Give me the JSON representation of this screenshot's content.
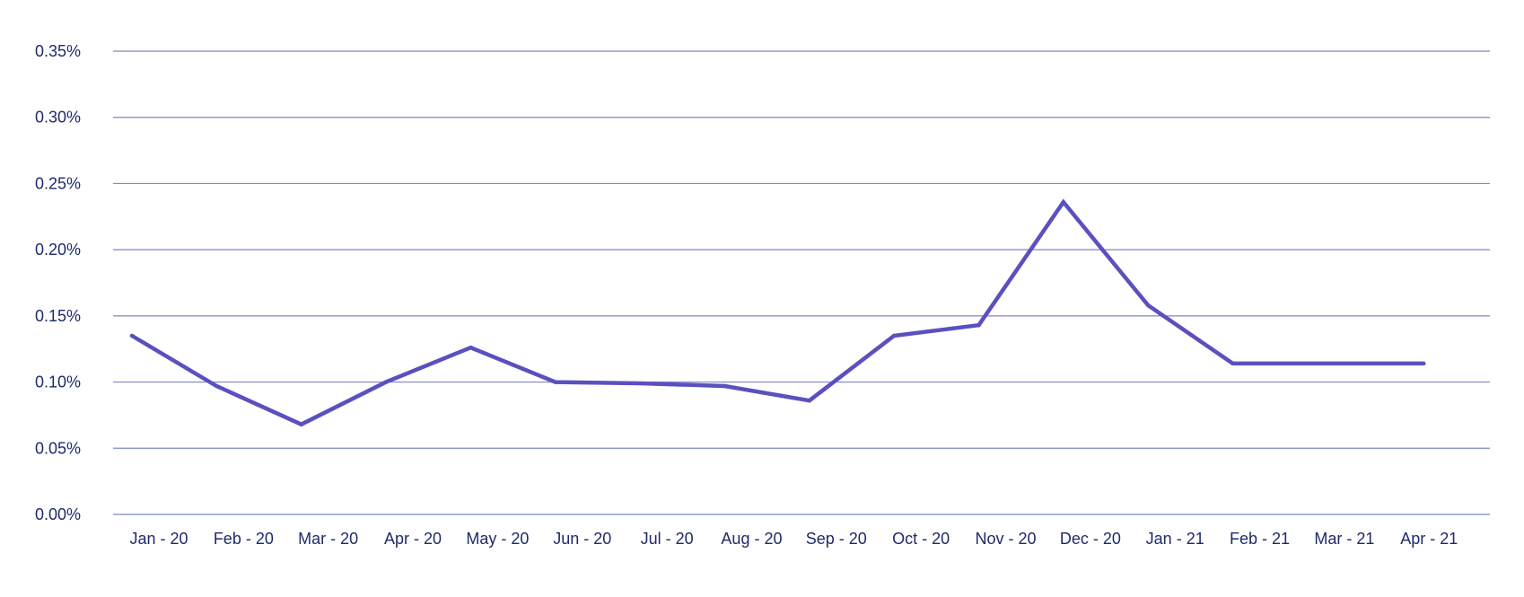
{
  "colors": {
    "line": "#5b50bf",
    "grid": "#7f86c4",
    "tick_text": "#1f2a6b",
    "background": "#ffffff"
  },
  "chart_data": {
    "type": "line",
    "title": "",
    "xlabel": "",
    "ylabel": "",
    "categories": [
      "Jan - 20",
      "Feb - 20",
      "Mar - 20",
      "Apr - 20",
      "May - 20",
      "Jun - 20",
      "Jul - 20",
      "Aug - 20",
      "Sep - 20",
      "Oct - 20",
      "Nov - 20",
      "Dec - 20",
      "Jan - 21",
      "Feb - 21",
      "Mar - 21",
      "Apr - 21"
    ],
    "series": [
      {
        "values": [
          0.00135,
          0.00097,
          0.00068,
          0.001,
          0.00126,
          0.001,
          0.00099,
          0.00097,
          0.00086,
          0.00135,
          0.00143,
          0.00236,
          0.00158,
          0.00114,
          0.00114,
          null
        ]
      }
    ],
    "yticks": [
      0,
      0.0005,
      0.001,
      0.0015,
      0.002,
      0.0025,
      0.003,
      0.0035
    ],
    "ytick_labels": [
      "0.00%",
      "0.05%",
      "0.10%",
      "0.15%",
      "0.20%",
      "0.25%",
      "0.30%",
      "0.35%"
    ],
    "ylim": [
      0,
      0.0035
    ],
    "grid": true,
    "legend": "none"
  }
}
